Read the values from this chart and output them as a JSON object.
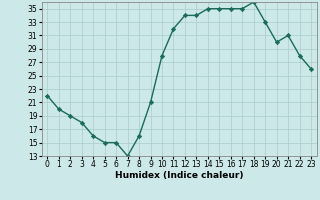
{
  "x": [
    0,
    1,
    2,
    3,
    4,
    5,
    6,
    7,
    8,
    9,
    10,
    11,
    12,
    13,
    14,
    15,
    16,
    17,
    18,
    19,
    20,
    21,
    22,
    23
  ],
  "y": [
    22,
    20,
    19,
    18,
    16,
    15,
    15,
    13,
    16,
    21,
    28,
    32,
    34,
    34,
    35,
    35,
    35,
    35,
    36,
    33,
    30,
    31,
    28,
    26
  ],
  "xlabel": "Humidex (Indice chaleur)",
  "ylim": [
    13,
    36
  ],
  "xlim": [
    -0.5,
    23.5
  ],
  "yticks": [
    13,
    15,
    17,
    19,
    21,
    23,
    25,
    27,
    29,
    31,
    33,
    35
  ],
  "xticks": [
    0,
    1,
    2,
    3,
    4,
    5,
    6,
    7,
    8,
    9,
    10,
    11,
    12,
    13,
    14,
    15,
    16,
    17,
    18,
    19,
    20,
    21,
    22,
    23
  ],
  "line_color": "#1a6b5a",
  "marker": "D",
  "marker_size": 2.2,
  "bg_color": "#cce8e8",
  "grid_color": "#aacccc",
  "line_width": 1.0,
  "tick_fontsize": 5.5,
  "xlabel_fontsize": 6.5
}
